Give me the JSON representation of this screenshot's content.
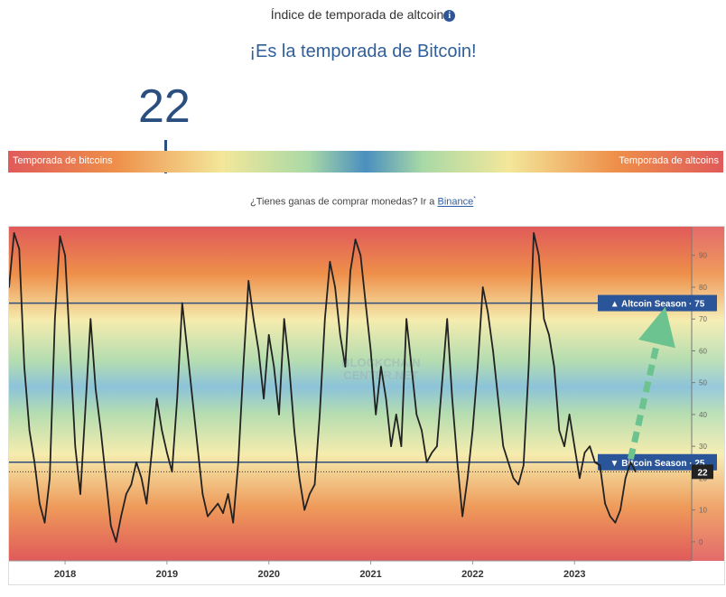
{
  "header": {
    "title": "Índice de temporada de altcoin",
    "info_icon": "info-icon",
    "headline": "¡Es la temporada de Bitcoin!",
    "value": "22"
  },
  "gauge": {
    "left_label": "Temporada de bitcoins",
    "right_label": "Temporada de altcoins",
    "value": 22,
    "range": [
      0,
      100
    ]
  },
  "promo": {
    "text": "¿Tienes ganas de comprar monedas? Ir a ",
    "link": "Binance",
    "link_mark": "*"
  },
  "chart_data": {
    "type": "line",
    "xlabel": "",
    "ylabel": "",
    "x_ticks": [
      "2018",
      "2019",
      "2020",
      "2021",
      "2022",
      "2023"
    ],
    "x_range": [
      2017.45,
      2024.15
    ],
    "y_ticks": [
      0,
      10,
      20,
      30,
      40,
      50,
      60,
      70,
      80,
      90
    ],
    "ylim": [
      -6,
      99
    ],
    "grid": false,
    "watermark": "BLOCKCHAIN CENTER.NET",
    "reference_lines": [
      {
        "label": "▲ Altcoin Season · 75",
        "value": 75
      },
      {
        "label": "▼ Bitcoin Season · 25",
        "value": 25
      }
    ],
    "current_marker": {
      "label": "22",
      "value": 22
    },
    "arrow": {
      "from": [
        2023.55,
        26
      ],
      "to": [
        2023.85,
        68
      ],
      "color": "#6cc38f"
    },
    "series": [
      {
        "x": [
          2017.45,
          2017.5,
          2017.55,
          2017.6,
          2017.65,
          2017.7,
          2017.75,
          2017.8,
          2017.85,
          2017.9,
          2017.95,
          2018.0,
          2018.05,
          2018.1,
          2018.15,
          2018.2,
          2018.25,
          2018.3,
          2018.35,
          2018.4,
          2018.45,
          2018.5,
          2018.55,
          2018.6,
          2018.65,
          2018.7,
          2018.75,
          2018.8,
          2018.85,
          2018.9,
          2018.95,
          2019.0,
          2019.05,
          2019.1,
          2019.15,
          2019.2,
          2019.25,
          2019.3,
          2019.35,
          2019.4,
          2019.45,
          2019.5,
          2019.55,
          2019.6,
          2019.65,
          2019.7,
          2019.75,
          2019.8,
          2019.85,
          2019.9,
          2019.95,
          2020.0,
          2020.05,
          2020.1,
          2020.15,
          2020.2,
          2020.25,
          2020.3,
          2020.35,
          2020.4,
          2020.45,
          2020.5,
          2020.55,
          2020.6,
          2020.65,
          2020.7,
          2020.75,
          2020.8,
          2020.85,
          2020.9,
          2020.95,
          2021.0,
          2021.05,
          2021.1,
          2021.15,
          2021.2,
          2021.25,
          2021.3,
          2021.35,
          2021.4,
          2021.45,
          2021.5,
          2021.55,
          2021.6,
          2021.65,
          2021.7,
          2021.75,
          2021.8,
          2021.85,
          2021.9,
          2021.95,
          2022.0,
          2022.05,
          2022.1,
          2022.15,
          2022.2,
          2022.25,
          2022.3,
          2022.35,
          2022.4,
          2022.45,
          2022.5,
          2022.55,
          2022.6,
          2022.65,
          2022.7,
          2022.75,
          2022.8,
          2022.85,
          2022.9,
          2022.95,
          2023.0,
          2023.05,
          2023.1,
          2023.15,
          2023.2,
          2023.25,
          2023.3,
          2023.35,
          2023.4,
          2023.45,
          2023.5,
          2023.55,
          2023.6
        ],
        "values": [
          80,
          97,
          92,
          55,
          35,
          25,
          12,
          6,
          20,
          70,
          96,
          90,
          60,
          30,
          15,
          42,
          70,
          48,
          35,
          20,
          5,
          0,
          8,
          15,
          18,
          25,
          20,
          12,
          28,
          45,
          35,
          28,
          22,
          45,
          75,
          60,
          45,
          30,
          15,
          8,
          10,
          12,
          9,
          15,
          6,
          25,
          55,
          82,
          70,
          60,
          45,
          65,
          55,
          40,
          70,
          55,
          35,
          20,
          10,
          15,
          18,
          40,
          70,
          88,
          80,
          65,
          55,
          85,
          95,
          90,
          75,
          60,
          40,
          55,
          45,
          30,
          40,
          30,
          70,
          55,
          40,
          35,
          25,
          28,
          30,
          50,
          70,
          45,
          25,
          8,
          20,
          35,
          55,
          80,
          72,
          60,
          45,
          30,
          25,
          20,
          18,
          24,
          55,
          97,
          90,
          70,
          65,
          55,
          35,
          30,
          40,
          30,
          20,
          28,
          30,
          25,
          24,
          12,
          8,
          6,
          10,
          20,
          25,
          22
        ]
      }
    ]
  }
}
